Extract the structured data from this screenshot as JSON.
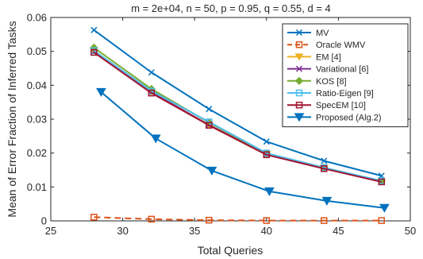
{
  "chart_data": {
    "type": "line",
    "title": "m = 2e+04, n = 50, p = 0.95, q = 0.55, d = 4",
    "xlabel": "Total Queries",
    "ylabel": "Mean of Error Fraction of Inferred Tasks",
    "xlim": [
      25,
      50
    ],
    "ylim": [
      0,
      0.06
    ],
    "xticks": [
      25,
      30,
      35,
      40,
      45,
      50
    ],
    "yticks": [
      0,
      0.01,
      0.02,
      0.03,
      0.04,
      0.05,
      0.06
    ],
    "xtick_labels": [
      "25",
      "30",
      "35",
      "40",
      "45",
      "50"
    ],
    "ytick_labels": [
      "0",
      "0.01",
      "0.02",
      "0.03",
      "0.04",
      "0.05",
      "0.06"
    ],
    "grid": false,
    "legend_position": "top-right",
    "series": [
      {
        "name": "MV",
        "color": "#0072BD",
        "marker": "x",
        "dash": "solid",
        "x": [
          28,
          32,
          36,
          40,
          44,
          48
        ],
        "y": [
          0.0563,
          0.0438,
          0.033,
          0.0234,
          0.0177,
          0.0133
        ]
      },
      {
        "name": "Oracle WMV",
        "color": "#D95319",
        "marker": "square",
        "dash": "dashed",
        "x": [
          28,
          32,
          36,
          40,
          44,
          48
        ],
        "y": [
          0.0011,
          0.0005,
          0.0002,
          0.0001,
          0.0001,
          0.0001
        ]
      },
      {
        "name": "EM [4]",
        "color": "#EDB120",
        "marker": "triangle-down",
        "dash": "solid",
        "x": [
          28,
          32,
          36,
          40,
          44,
          48
        ],
        "y": [
          0.0501,
          0.038,
          0.0283,
          0.0197,
          0.0156,
          0.0116
        ]
      },
      {
        "name": "Variational [6]",
        "color": "#7E2F8E",
        "marker": "x",
        "dash": "solid",
        "x": [
          28,
          32,
          36,
          40,
          44,
          48
        ],
        "y": [
          0.05,
          0.0379,
          0.0283,
          0.0196,
          0.0155,
          0.0115
        ]
      },
      {
        "name": "KOS [8]",
        "color": "#77AC30",
        "marker": "diamond",
        "dash": "solid",
        "x": [
          28,
          32,
          36,
          40,
          44,
          48
        ],
        "y": [
          0.0511,
          0.0389,
          0.029,
          0.0199,
          0.0157,
          0.0117
        ]
      },
      {
        "name": "Ratio-Eigen [9]",
        "color": "#4DBEEE",
        "marker": "square",
        "dash": "solid",
        "x": [
          28,
          32,
          36,
          40,
          44,
          48
        ],
        "y": [
          0.0502,
          0.0383,
          0.0292,
          0.02,
          0.0157,
          0.0118
        ]
      },
      {
        "name": "SpecEM [10]",
        "color": "#A2142F",
        "marker": "square",
        "dash": "solid",
        "x": [
          28,
          32,
          36,
          40,
          44,
          48
        ],
        "y": [
          0.0497,
          0.0377,
          0.0282,
          0.0195,
          0.0154,
          0.0115
        ]
      },
      {
        "name": "Proposed (Alg.2)",
        "color": "#0072BD",
        "marker": "triangle-down-filled",
        "dash": "solid",
        "x": [
          28.5,
          32.3,
          36.2,
          40.2,
          44.2,
          48.2
        ],
        "y": [
          0.038,
          0.0243,
          0.0148,
          0.0087,
          0.0059,
          0.0038
        ]
      }
    ]
  }
}
